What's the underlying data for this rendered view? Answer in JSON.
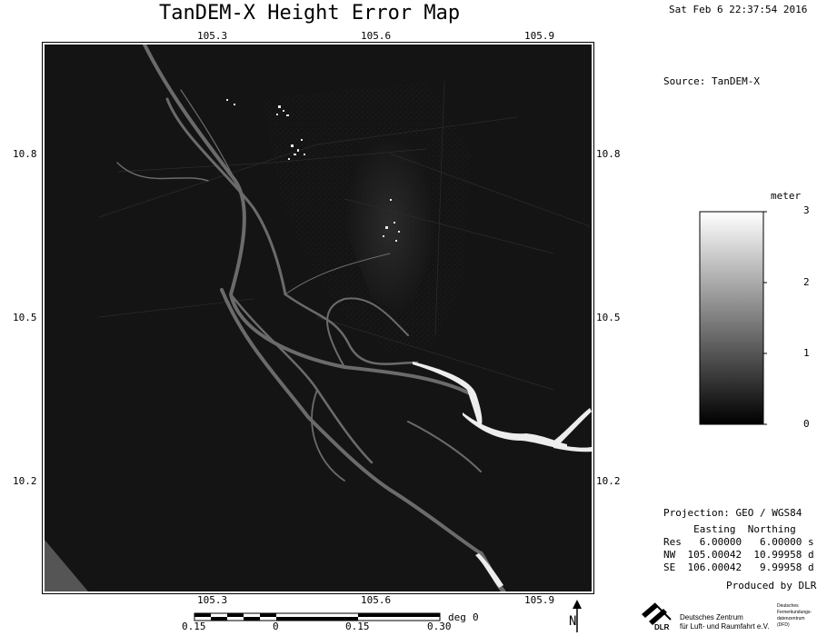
{
  "header": {
    "title": "TanDEM-X Height Error Map",
    "timestamp": "Sat Feb  6 22:37:54 2016"
  },
  "source": "Source: TanDEM-X",
  "axes": {
    "top_lon_ticks": [
      "105.3",
      "105.6",
      "105.9"
    ],
    "bottom_lon_ticks": [
      "105.3",
      "105.6",
      "105.9"
    ],
    "left_lat_ticks": [
      "10.8",
      "10.5",
      "10.2"
    ],
    "right_lat_ticks": [
      "10.8",
      "10.5",
      "10.2"
    ]
  },
  "colorbar": {
    "unit": "meter",
    "ticks": [
      "3",
      "2",
      "1",
      "0"
    ],
    "range": [
      0,
      3
    ],
    "gradient": [
      "#000000",
      "#ffffff"
    ]
  },
  "scalebar": {
    "unit": "deg",
    "labels": [
      "0.15",
      "0",
      "0.15",
      "0.30"
    ],
    "unit_value": "0"
  },
  "projection": {
    "title": "Projection: GEO / WGS84",
    "header": "     Easting  Northing",
    "res": "Res   6.00000   6.00000 s",
    "nw": "NW  105.00042  10.99958 d",
    "se": "SE  106.00042   9.99958 d"
  },
  "credit": "Produced by DLR",
  "north_label": "N",
  "logo": {
    "acronym": "DLR",
    "line1": "Deutsches Zentrum",
    "line2": "für Luft- und Raumfahrt e.V.",
    "side1": "Deutsches",
    "side2": "Fernerkundungs-",
    "side3": "datenzentrum",
    "side4": "(DFD)"
  }
}
